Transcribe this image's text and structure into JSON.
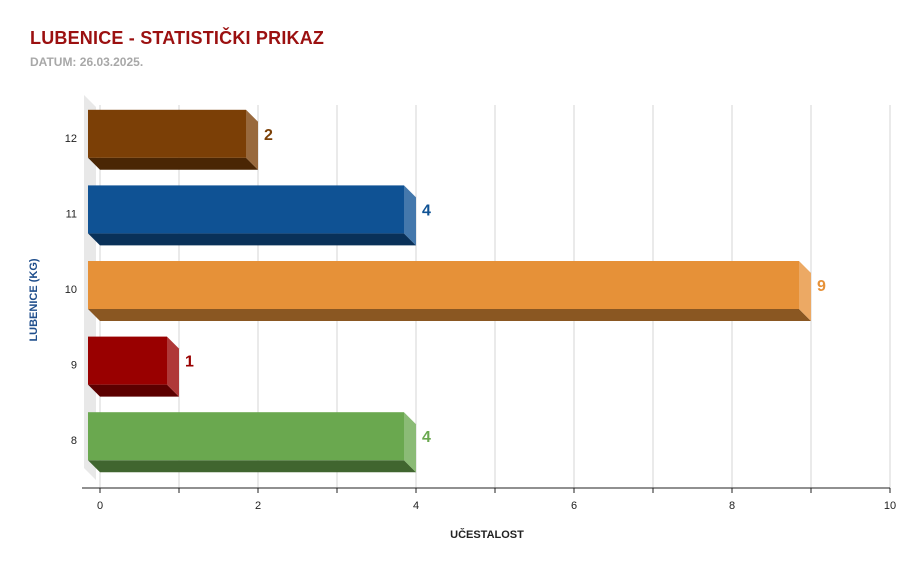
{
  "header": {
    "title": "LUBENICE - STATISTIČKI PRIKAZ",
    "subtitle": "DATUM: 26.03.2025."
  },
  "chart_data": {
    "type": "bar",
    "orientation": "horizontal",
    "style": "3d",
    "categories": [
      "12",
      "11",
      "10",
      "9",
      "8"
    ],
    "values": [
      2,
      4,
      9,
      1,
      4
    ],
    "colors": [
      "#7b3f06",
      "#0f5294",
      "#e69138",
      "#990000",
      "#6aa84f"
    ],
    "xlabel": "UČESTALOST",
    "ylabel": "LUBENICE (KG)",
    "xlim": [
      0,
      10
    ],
    "xticks": [
      "0",
      "2",
      "4",
      "6",
      "8",
      "10"
    ],
    "grid": true,
    "legend": "none"
  }
}
